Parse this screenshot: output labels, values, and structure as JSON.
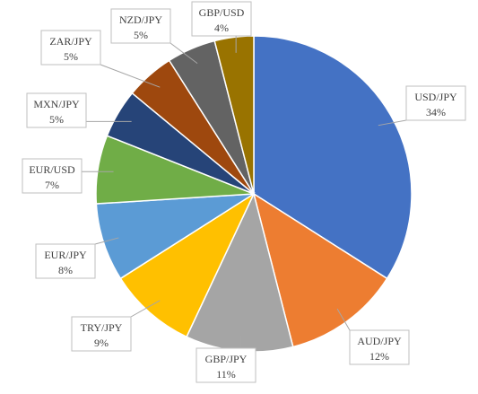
{
  "chart_data": {
    "type": "pie",
    "title": "",
    "slices": [
      {
        "label": "USD/JPY",
        "value": 34,
        "value_label": "34%",
        "color": "#4472C4"
      },
      {
        "label": "AUD/JPY",
        "value": 12,
        "value_label": "12%",
        "color": "#ED7D31"
      },
      {
        "label": "GBP/JPY",
        "value": 11,
        "value_label": "11%",
        "color": "#A5A5A5"
      },
      {
        "label": "TRY/JPY",
        "value": 9,
        "value_label": "9%",
        "color": "#FFC000"
      },
      {
        "label": "EUR/JPY",
        "value": 8,
        "value_label": "8%",
        "color": "#5B9BD5"
      },
      {
        "label": "EUR/USD",
        "value": 7,
        "value_label": "7%",
        "color": "#70AD47"
      },
      {
        "label": "MXN/JPY",
        "value": 5,
        "value_label": "5%",
        "color": "#264478"
      },
      {
        "label": "ZAR/JPY",
        "value": 5,
        "value_label": "5%",
        "color": "#9E480E"
      },
      {
        "label": "NZD/JPY",
        "value": 5,
        "value_label": "5%",
        "color": "#636363"
      },
      {
        "label": "GBP/USD",
        "value": 4,
        "value_label": "4%",
        "color": "#997300"
      }
    ],
    "legend": "none",
    "data_labels": "category name and percentage in callout boxes"
  }
}
